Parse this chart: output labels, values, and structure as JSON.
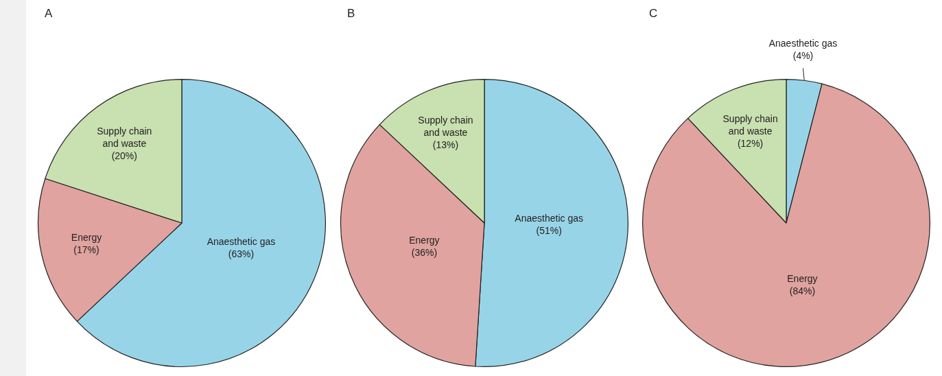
{
  "chart_data": [
    {
      "type": "pie",
      "title": "A",
      "categories": [
        "Anaesthetic gas",
        "Energy",
        "Supply chain and waste"
      ],
      "values": [
        63,
        17,
        20
      ],
      "colors": [
        "#98d4e8",
        "#e0a39f",
        "#c9e0b0"
      ],
      "value_labels": [
        "(63%)",
        "(17%)",
        "(20%)"
      ]
    },
    {
      "type": "pie",
      "title": "B",
      "categories": [
        "Anaesthetic gas",
        "Energy",
        "Supply chain and waste"
      ],
      "values": [
        51,
        36,
        13
      ],
      "colors": [
        "#98d4e8",
        "#e0a39f",
        "#c9e0b0"
      ],
      "value_labels": [
        "(51%)",
        "(36%)",
        "(13%)"
      ]
    },
    {
      "type": "pie",
      "title": "C",
      "categories": [
        "Anaesthetic gas",
        "Energy",
        "Supply chain and waste"
      ],
      "values": [
        4,
        84,
        12
      ],
      "colors": [
        "#98d4e8",
        "#e0a39f",
        "#c9e0b0"
      ],
      "value_labels": [
        "(4%)",
        "(84%)",
        "(12%)"
      ]
    }
  ]
}
